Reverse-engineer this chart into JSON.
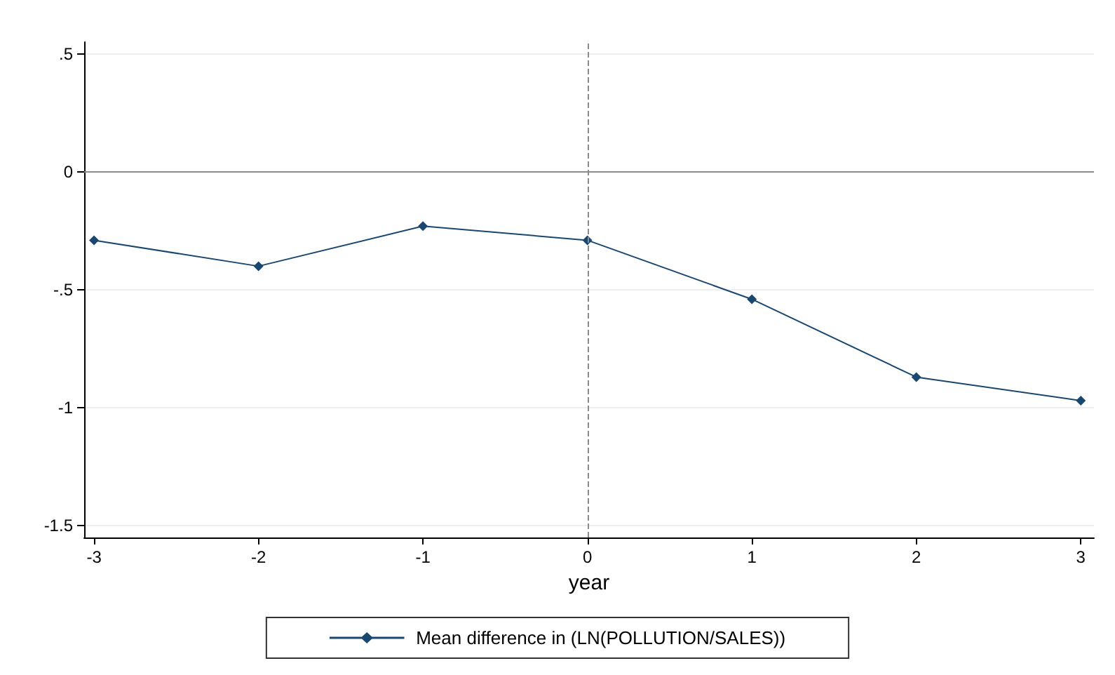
{
  "chart_data": {
    "type": "line",
    "xlabel": "year",
    "x": [
      -3,
      -2,
      -1,
      0,
      1,
      2,
      3
    ],
    "series": [
      {
        "name": "Mean difference in (LN(POLLUTION/SALES))",
        "color": "#1a476f",
        "values": [
          -0.29,
          -0.4,
          -0.23,
          -0.29,
          -0.54,
          -0.87,
          -0.97
        ]
      }
    ],
    "xlim": [
      -3.06,
      3.08
    ],
    "xticks": [
      -3,
      -2,
      -1,
      0,
      1,
      2,
      3
    ],
    "ylim": [
      -1.55,
      0.55
    ],
    "yticks": [
      {
        "value": 0.5,
        "label": ".5"
      },
      0,
      {
        "value": -0.5,
        "label": "-.5"
      },
      -1,
      {
        "value": -1.5,
        "label": "-1.5"
      }
    ],
    "ref_lines": [
      {
        "axis": "y",
        "value": 0,
        "color": "#8c8c8c",
        "line_style": "solid"
      },
      {
        "axis": "x",
        "value": 0,
        "color": "#8c8c8c",
        "line_style": "dashed"
      }
    ],
    "grid": "y",
    "legend": "bottom",
    "marker": "diamond",
    "line_style": "solid"
  }
}
